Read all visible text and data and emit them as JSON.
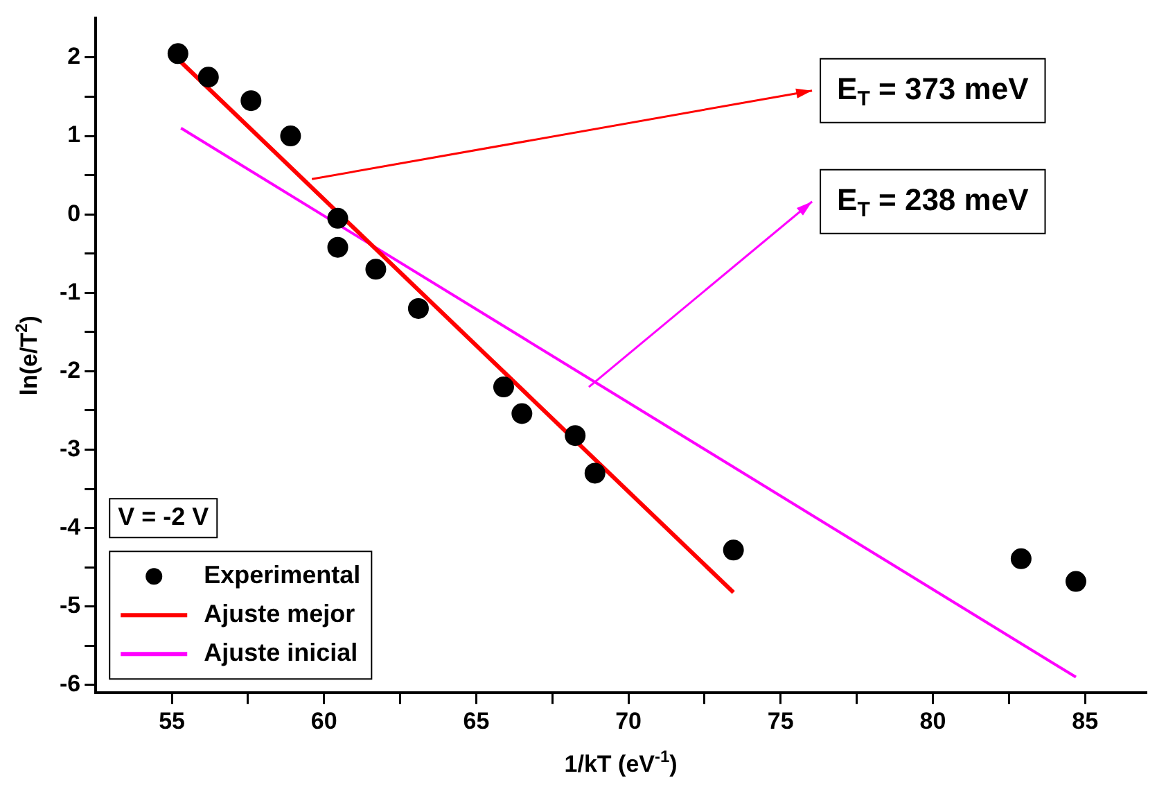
{
  "chart_data": {
    "type": "scatter",
    "xlabel": "1/kT (eV$^{-1}$)",
    "ylabel": "ln(e/T$^{2}$)",
    "xlim": [
      52.5,
      87
    ],
    "ylim": [
      -6.1,
      2.5
    ],
    "xticks": [
      55,
      {
        "value": 57.5,
        "label": null
      },
      60,
      {
        "value": 62.5,
        "label": null
      },
      65,
      {
        "value": 67.5,
        "label": null
      },
      70,
      {
        "value": 72.5,
        "label": null
      },
      75,
      {
        "value": 77.5,
        "label": null
      },
      80,
      {
        "value": 82.5,
        "label": null
      },
      85
    ],
    "yticks": [
      -6,
      {
        "value": -5.5,
        "label": null
      },
      -5,
      {
        "value": -4.5,
        "label": null
      },
      -4,
      {
        "value": -3.5,
        "label": null
      },
      -3,
      {
        "value": -2.5,
        "label": null
      },
      -2,
      {
        "value": -1.5,
        "label": null
      },
      -1,
      {
        "value": -0.5,
        "label": null
      },
      0,
      {
        "value": 0.5,
        "label": null
      },
      1,
      {
        "value": 1.5,
        "label": null
      },
      2
    ],
    "grid": false,
    "legend": "bottom left",
    "series": [
      {
        "name": "Experimental",
        "marker": "circle",
        "color": "#000000",
        "x": [
          55.2,
          56.2,
          57.6,
          58.9,
          60.45,
          60.45,
          61.7,
          63.1,
          65.9,
          66.5,
          68.25,
          68.9,
          73.45,
          82.9,
          84.7
        ],
        "values": [
          2.05,
          1.75,
          1.45,
          1.0,
          -0.05,
          -0.42,
          -0.7,
          -1.2,
          -2.2,
          -2.54,
          -2.82,
          -3.3,
          -4.28,
          -4.39,
          -4.68
        ]
      },
      {
        "name": "Ajuste mejor",
        "type": "line",
        "marker": "none",
        "color": "#ff0000",
        "x": [
          55.2,
          73.45
        ],
        "values": [
          1.98,
          -4.82
        ]
      },
      {
        "name": "Ajuste inicial",
        "type": "line",
        "marker": "none",
        "color": "#ff00ff",
        "x": [
          55.3,
          84.7
        ],
        "values": [
          1.1,
          -5.9
        ]
      }
    ],
    "annotations": [
      "V = -2 V",
      {
        "text": "E$_{T}$ = 373 meV",
        "x": 59.6,
        "y": 0.45
      },
      {
        "text": "E$_{T}$ = 238 meV",
        "x": 68.7,
        "y": -2.2
      }
    ]
  }
}
